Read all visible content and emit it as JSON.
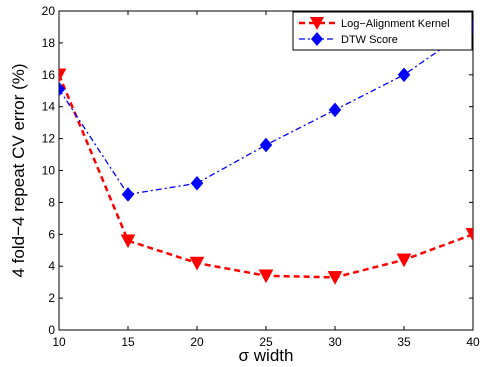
{
  "chart_data": {
    "type": "line",
    "xlabel": "σ width",
    "ylabel": "4 fold−4 repeat CV error (%)",
    "xlim": [
      10,
      40
    ],
    "ylim": [
      0,
      20
    ],
    "xticks": [
      10,
      15,
      20,
      25,
      30,
      35,
      40
    ],
    "yticks": [
      0,
      2,
      4,
      6,
      8,
      10,
      12,
      14,
      16,
      18,
      20
    ],
    "grid": false,
    "legend_position": "top-right",
    "series": [
      {
        "name": "Log−Alignment Kernel",
        "color": "#ff0000",
        "line_style": "dashed",
        "marker": "triangle-down",
        "x": [
          10,
          15,
          20,
          25,
          30,
          35,
          40
        ],
        "y": [
          16.0,
          5.6,
          4.2,
          3.4,
          3.3,
          4.4,
          6.0
        ]
      },
      {
        "name": "DTW Score",
        "color": "#0000ff",
        "line_style": "dash-dot",
        "marker": "diamond",
        "x": [
          10,
          15,
          20,
          25,
          30,
          35,
          40
        ],
        "y": [
          15.1,
          8.5,
          9.2,
          11.6,
          13.8,
          16.0,
          19.0
        ]
      }
    ]
  }
}
